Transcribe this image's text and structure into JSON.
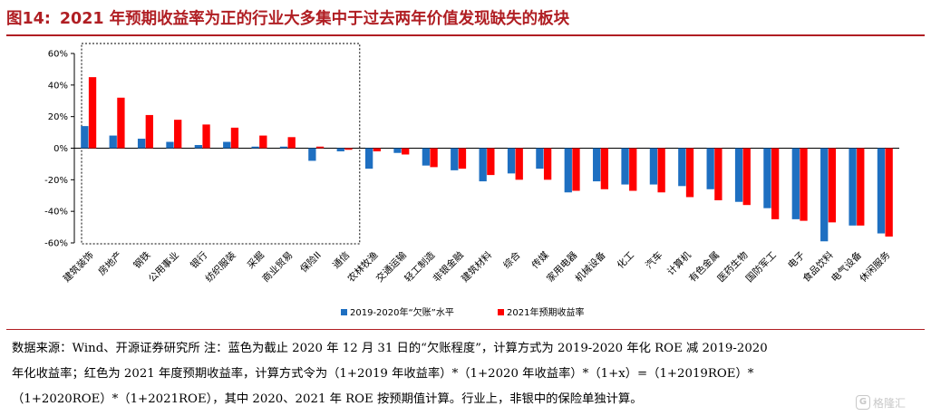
{
  "header": {
    "figure_label": "图14:",
    "title": "2021 年预期收益率为正的行业大多集中于过去两年价值发现缺失的板块"
  },
  "colors": {
    "title": "#b01e23",
    "series_blue": "#1e6fc1",
    "series_red": "#ff0000"
  },
  "chart_data": {
    "type": "bar",
    "categories": [
      "建筑装饰",
      "房地产",
      "钢铁",
      "公用事业",
      "银行",
      "纺织服装",
      "采掘",
      "商业贸易",
      "保险II",
      "通信",
      "农林牧渔",
      "交通运输",
      "轻工制造",
      "非银金融",
      "建筑材料",
      "综合",
      "传媒",
      "家用电器",
      "机械设备",
      "化工",
      "汽车",
      "计算机",
      "有色金属",
      "医药生物",
      "国防军工",
      "电子",
      "食品饮料",
      "电气设备",
      "休闲服务"
    ],
    "series": [
      {
        "name": "2019-2020年“欠账”水平",
        "color": "#1e6fc1",
        "values": [
          14,
          8,
          6,
          4,
          2,
          4,
          1,
          1,
          -8,
          -2,
          -13,
          -3,
          -11,
          -14,
          -21,
          -16,
          -13,
          -28,
          -21,
          -23,
          -23,
          -24,
          -26,
          -34,
          -38,
          -45,
          -59,
          -49,
          -54
        ]
      },
      {
        "name": "2021年预期收益率",
        "color": "#ff0000",
        "values": [
          45,
          32,
          21,
          18,
          15,
          13,
          8,
          7,
          1,
          -1,
          -2,
          -4,
          -12,
          -13,
          -17,
          -20,
          -20,
          -27,
          -26,
          -27,
          -28,
          -31,
          -33,
          -36,
          -45,
          -46,
          -47,
          -49,
          -56
        ]
      }
    ],
    "y_ticks": [
      "60%",
      "40%",
      "20%",
      "0%",
      "-20%",
      "-40%",
      "-60%"
    ],
    "ylim": [
      -60,
      60
    ],
    "y_unit": "%",
    "grid": false,
    "legend_position": "bottom-center",
    "highlight_box": "around first 10 categories (dashed)"
  },
  "source_note": {
    "line1": "数据来源：Wind、开源证券研究所  注：蓝色为截止 2020 年 12 月 31 日的“欠账程度”，计算方式为 2019-2020 年化 ROE 减 2019-2020",
    "line2": "年化收益率；红色为  2021  年度预期收益率，计算方式令为（1+2019  年收益率）*（1+2020  年收益率）*（1+x）=（1+2019ROE）*",
    "line3": "（1+2020ROE）*（1+2021ROE），其中 2020、2021 年 ROE 按预期值计算。行业上，非银中的保险单独计算。"
  },
  "watermark": {
    "icon": "G",
    "text": "格隆汇"
  }
}
